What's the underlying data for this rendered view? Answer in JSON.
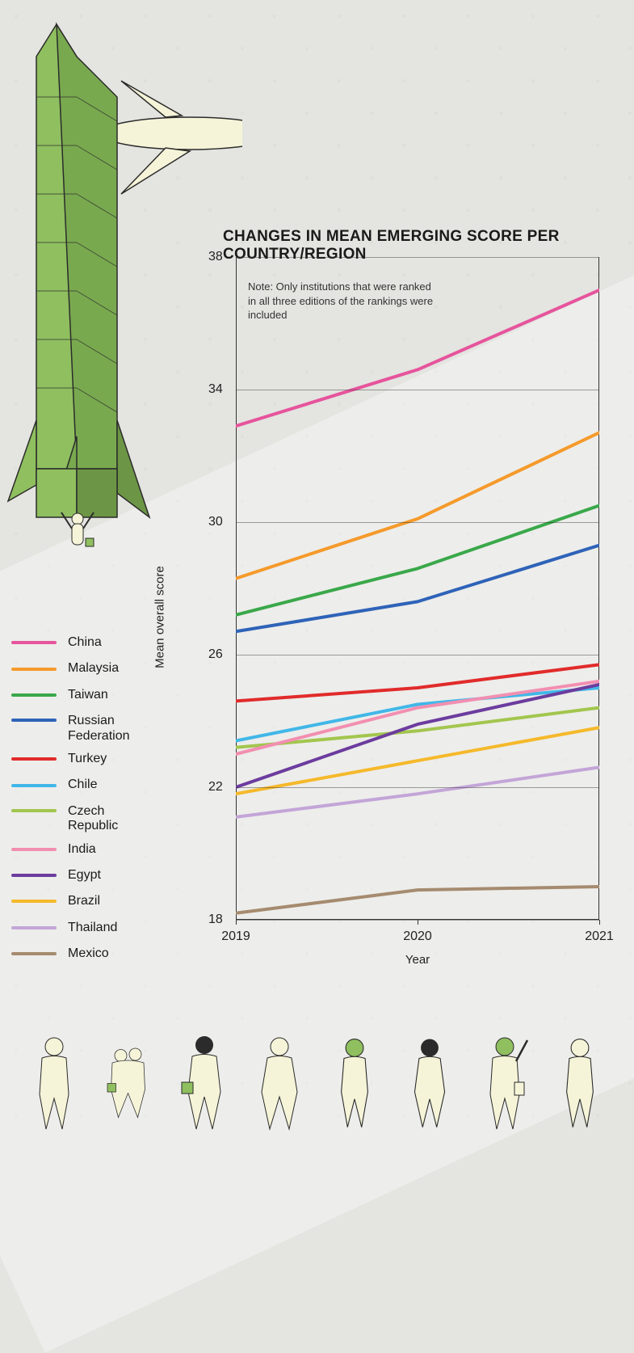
{
  "chart": {
    "title": "CHANGES IN MEAN EMERGING SCORE PER COUNTRY/REGION",
    "note": "Note: Only institutions that were ranked in all three editions of the rankings were included",
    "x_label": "Year",
    "y_label": "Mean overall score",
    "x_ticks": [
      "2019",
      "2020",
      "2021"
    ],
    "y_ticks": [
      18,
      22,
      26,
      30,
      34,
      38
    ],
    "ylim": [
      18,
      38
    ],
    "x_positions": [
      0,
      0.5,
      1
    ],
    "grid_color": "#333333",
    "background_color": "#e4e4e0",
    "line_width": 4,
    "tick_fontsize": 16,
    "label_fontsize": 15,
    "title_fontsize": 19,
    "note_fontsize": 13,
    "series": [
      {
        "name": "China",
        "color": "#e6549c",
        "values": [
          32.9,
          34.6,
          37.0
        ]
      },
      {
        "name": "Malaysia",
        "color": "#f59a2b",
        "values": [
          28.3,
          30.1,
          32.7
        ]
      },
      {
        "name": "Taiwan",
        "color": "#3aa84a",
        "values": [
          27.2,
          28.6,
          30.5
        ]
      },
      {
        "name": "Russian Federation",
        "color": "#2e63b8",
        "values": [
          26.7,
          27.6,
          29.3
        ]
      },
      {
        "name": "Turkey",
        "color": "#e12b2b",
        "values": [
          24.6,
          25.0,
          25.7
        ]
      },
      {
        "name": "Chile",
        "color": "#41b7e8",
        "values": [
          23.4,
          24.5,
          25.0
        ]
      },
      {
        "name": "Czech Republic",
        "color": "#a2c64e",
        "values": [
          23.2,
          23.7,
          24.4
        ]
      },
      {
        "name": "India",
        "color": "#f28fb1",
        "values": [
          23.0,
          24.4,
          25.2
        ]
      },
      {
        "name": "Egypt",
        "color": "#6c3c9e",
        "values": [
          22.0,
          23.9,
          25.1
        ]
      },
      {
        "name": "Brazil",
        "color": "#f5b92b",
        "values": [
          21.8,
          22.8,
          23.8
        ]
      },
      {
        "name": "Thailand",
        "color": "#c3a5d8",
        "values": [
          21.1,
          21.8,
          22.6
        ]
      },
      {
        "name": "Mexico",
        "color": "#a58b6f",
        "values": [
          18.2,
          18.9,
          19.0
        ]
      }
    ]
  },
  "legend": {
    "swatch_width": 56,
    "swatch_height": 4,
    "label_fontsize": 16
  }
}
